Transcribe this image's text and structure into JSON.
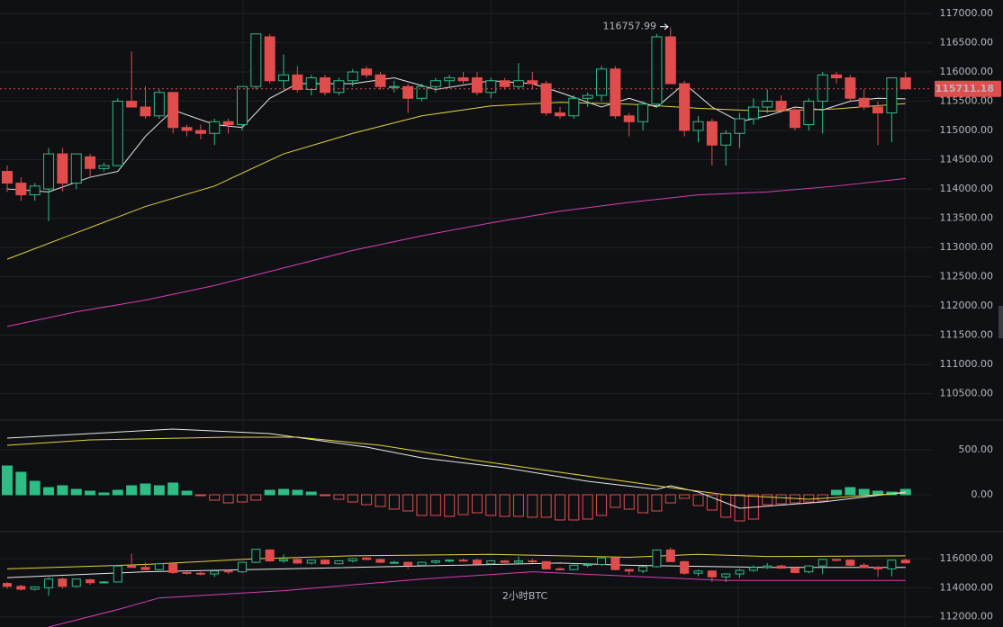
{
  "chart_data": [
    {
      "type": "candlestick",
      "up_color": "#2ebd85",
      "down_color": "#e04d4d",
      "ylim": [
        110080,
        117230
      ],
      "yticks": [
        {
          "value": 117000,
          "label": "117000.00"
        },
        {
          "value": 116500,
          "label": "116500.00"
        },
        {
          "value": 116000,
          "label": "116000.00"
        },
        {
          "value": 115500,
          "label": "115500.00"
        },
        {
          "value": 115000,
          "label": "115000.00"
        },
        {
          "value": 114500,
          "label": "114500.00"
        },
        {
          "value": 114000,
          "label": "114000.00"
        },
        {
          "value": 113500,
          "label": "113500.00"
        },
        {
          "value": 113000,
          "label": "113000.00"
        },
        {
          "value": 112500,
          "label": "112500.00"
        },
        {
          "value": 112000,
          "label": "112000.00"
        },
        {
          "value": 111500,
          "label": "111500.00"
        },
        {
          "value": 111000,
          "label": "111000.00"
        },
        {
          "value": 110500,
          "label": "110500.00"
        }
      ],
      "open": [
        114300,
        114100,
        113900,
        114000,
        114600,
        114100,
        114550,
        114350,
        114400,
        115500,
        115400,
        115250,
        115650,
        115050,
        115000,
        114950,
        115150,
        115100,
        115750,
        116600,
        115850,
        115950,
        115700,
        115900,
        115650,
        115850,
        116050,
        115950,
        115750,
        115750,
        115550,
        115750,
        115850,
        115900,
        115900,
        115650,
        115850,
        115750,
        115850,
        115800,
        115300,
        115250,
        115550,
        115600,
        116050,
        115250,
        115150,
        115450,
        116600,
        115800,
        115000,
        115150,
        114750,
        114950,
        115200,
        115400,
        115500,
        115350,
        115100,
        115500,
        115950,
        115900,
        115550,
        115400,
        115300,
        115900
      ],
      "high": [
        114400,
        114200,
        114100,
        114700,
        114700,
        114600,
        114600,
        114450,
        115550,
        116350,
        115750,
        115700,
        115650,
        115100,
        115100,
        115200,
        115200,
        115750,
        116650,
        116650,
        116300,
        116100,
        115950,
        115950,
        115900,
        116050,
        116100,
        116000,
        115850,
        115800,
        115800,
        115900,
        115950,
        116000,
        116000,
        115900,
        115900,
        116150,
        116000,
        115850,
        115400,
        115600,
        115650,
        116100,
        116100,
        115300,
        115500,
        116650,
        116757.99,
        115850,
        115250,
        115200,
        115000,
        115300,
        115550,
        115700,
        115600,
        115400,
        115550,
        116000,
        116000,
        115950,
        115700,
        115500,
        115900,
        116000
      ],
      "low": [
        113950,
        113800,
        113800,
        113450,
        113950,
        114000,
        114200,
        114300,
        114400,
        115400,
        115200,
        115200,
        114950,
        114900,
        114850,
        114750,
        114950,
        115000,
        115700,
        115800,
        115700,
        115650,
        115600,
        115600,
        115600,
        115750,
        115900,
        115700,
        115650,
        115300,
        115500,
        115650,
        115750,
        115800,
        115600,
        115550,
        115700,
        115700,
        115700,
        115250,
        115200,
        115200,
        115400,
        115500,
        115200,
        114900,
        115000,
        115400,
        115800,
        114900,
        114800,
        114400,
        114400,
        114700,
        115100,
        115300,
        115300,
        115000,
        115000,
        114950,
        115800,
        115500,
        115350,
        114750,
        114800,
        115700
      ],
      "close": [
        114100,
        113900,
        114050,
        114600,
        114100,
        114600,
        114350,
        114400,
        115500,
        115400,
        115250,
        115650,
        115050,
        115000,
        114950,
        115150,
        115100,
        115750,
        116650,
        115850,
        115950,
        115700,
        115900,
        115650,
        115850,
        116000,
        115950,
        115750,
        115750,
        115550,
        115750,
        115850,
        115900,
        115850,
        115650,
        115850,
        115750,
        115850,
        115800,
        115300,
        115250,
        115550,
        115600,
        116050,
        115250,
        115150,
        115450,
        116600,
        115800,
        115000,
        115150,
        114750,
        114950,
        115200,
        115400,
        115500,
        115350,
        115050,
        115500,
        115950,
        115900,
        115550,
        115400,
        115300,
        115900,
        115711.18
      ],
      "series": [
        {
          "color": "#e8e8e8",
          "x": [
            0,
            3,
            6,
            8,
            10,
            12,
            15,
            17,
            19,
            21,
            25,
            28,
            31,
            35,
            38,
            40,
            43,
            45,
            47,
            49,
            51,
            53,
            55,
            57,
            59,
            61,
            63,
            65
          ],
          "values": [
            114000,
            113950,
            114200,
            114300,
            114900,
            115350,
            115100,
            115050,
            115550,
            115800,
            115800,
            115900,
            115700,
            115850,
            115800,
            115650,
            115400,
            115550,
            115400,
            115800,
            115400,
            115150,
            115250,
            115400,
            115350,
            115500,
            115550,
            115540
          ]
        },
        {
          "color": "#e6d23a",
          "x": [
            0,
            5,
            10,
            15,
            20,
            25,
            30,
            35,
            40,
            45,
            50,
            55,
            60,
            65
          ],
          "values": [
            112800,
            113250,
            113700,
            114050,
            114600,
            114950,
            115250,
            115420,
            115480,
            115450,
            115380,
            115330,
            115370,
            115460
          ]
        },
        {
          "color": "#d63fb8",
          "x": [
            0,
            5,
            10,
            15,
            20,
            25,
            30,
            35,
            40,
            45,
            50,
            55,
            60,
            65
          ],
          "values": [
            111650,
            111900,
            112100,
            112350,
            112650,
            112950,
            113200,
            113420,
            113620,
            113770,
            113900,
            113950,
            114050,
            114180
          ]
        }
      ],
      "high_annotation": {
        "value": 116757.99,
        "label": "116757.99"
      },
      "price": {
        "value": 115711.18,
        "label": "115711.18"
      }
    },
    {
      "type": "macd",
      "up_color": "#2ebd85",
      "down_color": "#e04d4d",
      "ylim": [
        -400,
        800
      ],
      "yticks": [
        {
          "value": 500,
          "label": "500.00"
        },
        {
          "value": 0,
          "label": "0.00"
        }
      ],
      "values": [
        320,
        250,
        150,
        80,
        100,
        60,
        40,
        20,
        50,
        100,
        120,
        100,
        130,
        40,
        -10,
        -60,
        -90,
        -80,
        -60,
        50,
        60,
        50,
        30,
        -10,
        -50,
        -80,
        -110,
        -130,
        -160,
        -180,
        -230,
        -230,
        -240,
        -220,
        -200,
        -230,
        -240,
        -240,
        -250,
        -250,
        -280,
        -280,
        -270,
        -230,
        -140,
        -160,
        -200,
        -180,
        -90,
        -40,
        -120,
        -170,
        -250,
        -290,
        -270,
        -110,
        -100,
        -90,
        -80,
        -70,
        50,
        80,
        60,
        40,
        30,
        60
      ],
      "series": [
        {
          "color": "#e8e8e8",
          "x": [
            0,
            12,
            19,
            26,
            30,
            36,
            42,
            47,
            48,
            50,
            53,
            59,
            65
          ],
          "values": [
            630,
            730,
            680,
            530,
            410,
            300,
            150,
            60,
            100,
            30,
            -150,
            -80,
            30
          ]
        },
        {
          "color": "#e6d23a",
          "x": [
            0,
            6,
            16,
            21,
            27,
            34,
            40,
            47,
            52,
            58,
            65
          ],
          "values": [
            550,
            610,
            640,
            640,
            550,
            380,
            250,
            100,
            0,
            -50,
            20
          ]
        }
      ]
    },
    {
      "type": "overview",
      "ylim": [
        111300,
        117800
      ],
      "yticks": [
        {
          "value": 116000,
          "label": "116000.00"
        },
        {
          "value": 114000,
          "label": "114000.00"
        },
        {
          "value": 112000,
          "label": "112000.00"
        }
      ],
      "watermark": "2小时BTC",
      "series": [
        {
          "color": "#e6d23a",
          "x": [
            0,
            10,
            18,
            25,
            35,
            45,
            50,
            55,
            65
          ],
          "values": [
            115300,
            115600,
            116000,
            116200,
            116300,
            116100,
            116300,
            116150,
            116200
          ]
        },
        {
          "color": "#e8e8e8",
          "x": [
            0,
            10,
            20,
            30,
            40,
            45,
            55,
            65
          ],
          "values": [
            114700,
            115100,
            115300,
            115500,
            115700,
            115550,
            115400,
            115400
          ]
        },
        {
          "color": "#d63fb8",
          "x": [
            3,
            8,
            11,
            20,
            30,
            38,
            45,
            52,
            65
          ],
          "values": [
            111300,
            112500,
            113300,
            113800,
            114600,
            115100,
            114800,
            114500,
            114500
          ]
        }
      ]
    }
  ]
}
